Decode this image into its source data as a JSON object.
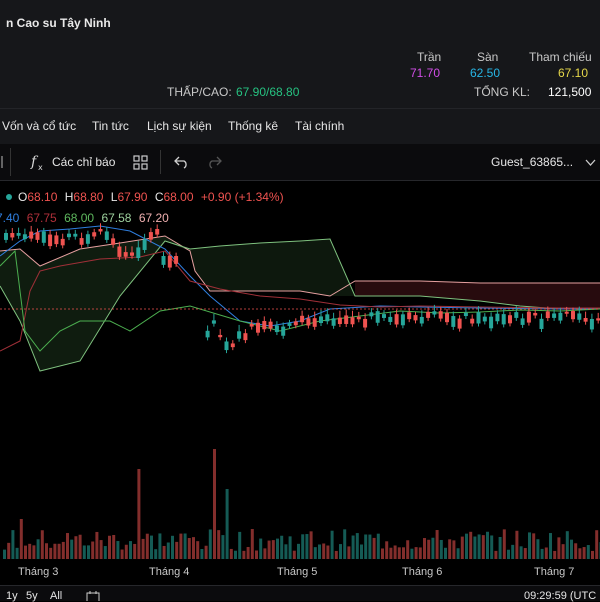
{
  "header": {
    "company": "n Cao su Tây Ninh",
    "range_label": "THẤP/CAO:",
    "low": "67.90",
    "sep": "/",
    "high": "68.80",
    "ceiling_label": "Trần",
    "ceiling": "71.70",
    "floor_label": "Sàn",
    "floor": "62.50",
    "ref_label": "Tham chiếu",
    "ref": "67.10",
    "vol_label": "TỔNG KL:",
    "volume": "121,500",
    "colors": {
      "ceiling": "#d24ee8",
      "floor": "#27b6e6",
      "ref": "#e6d84a",
      "up": "#26a69a",
      "down": "#ef5350"
    }
  },
  "tabs": [
    "Vốn và cổ tức",
    "Tin tức",
    "Lịch sự kiện",
    "Thống kê",
    "Tài chính"
  ],
  "toolbar": {
    "indicators_label": "Các chỉ báo",
    "user": "Guest_63865...",
    "icons": [
      "fx-icon",
      "templates-grid-icon",
      "undo-icon",
      "redo-icon",
      "chevron-down-icon"
    ]
  },
  "ohlc": {
    "o_label": "O",
    "o": "68.10",
    "h_label": "H",
    "h": "68.80",
    "l_label": "L",
    "l": "67.90",
    "c_label": "C",
    "c": "68.00",
    "change": "+0.90 (+1.34%)"
  },
  "indicator_values": [
    "7.40",
    "67.75",
    "68.00",
    "67.58",
    "67.20"
  ],
  "chart_data": {
    "type": "candlestick",
    "indicator": "ichimoku",
    "x_labels": [
      "Tháng 3",
      "Tháng 4",
      "Tháng 5",
      "Tháng 6",
      "Tháng 7"
    ],
    "price_level_line": 68.0,
    "grid": false
  },
  "bottom": {
    "range_buttons": [
      "1y",
      "5y",
      "All"
    ],
    "clock": "09:29:59 (UTC"
  }
}
